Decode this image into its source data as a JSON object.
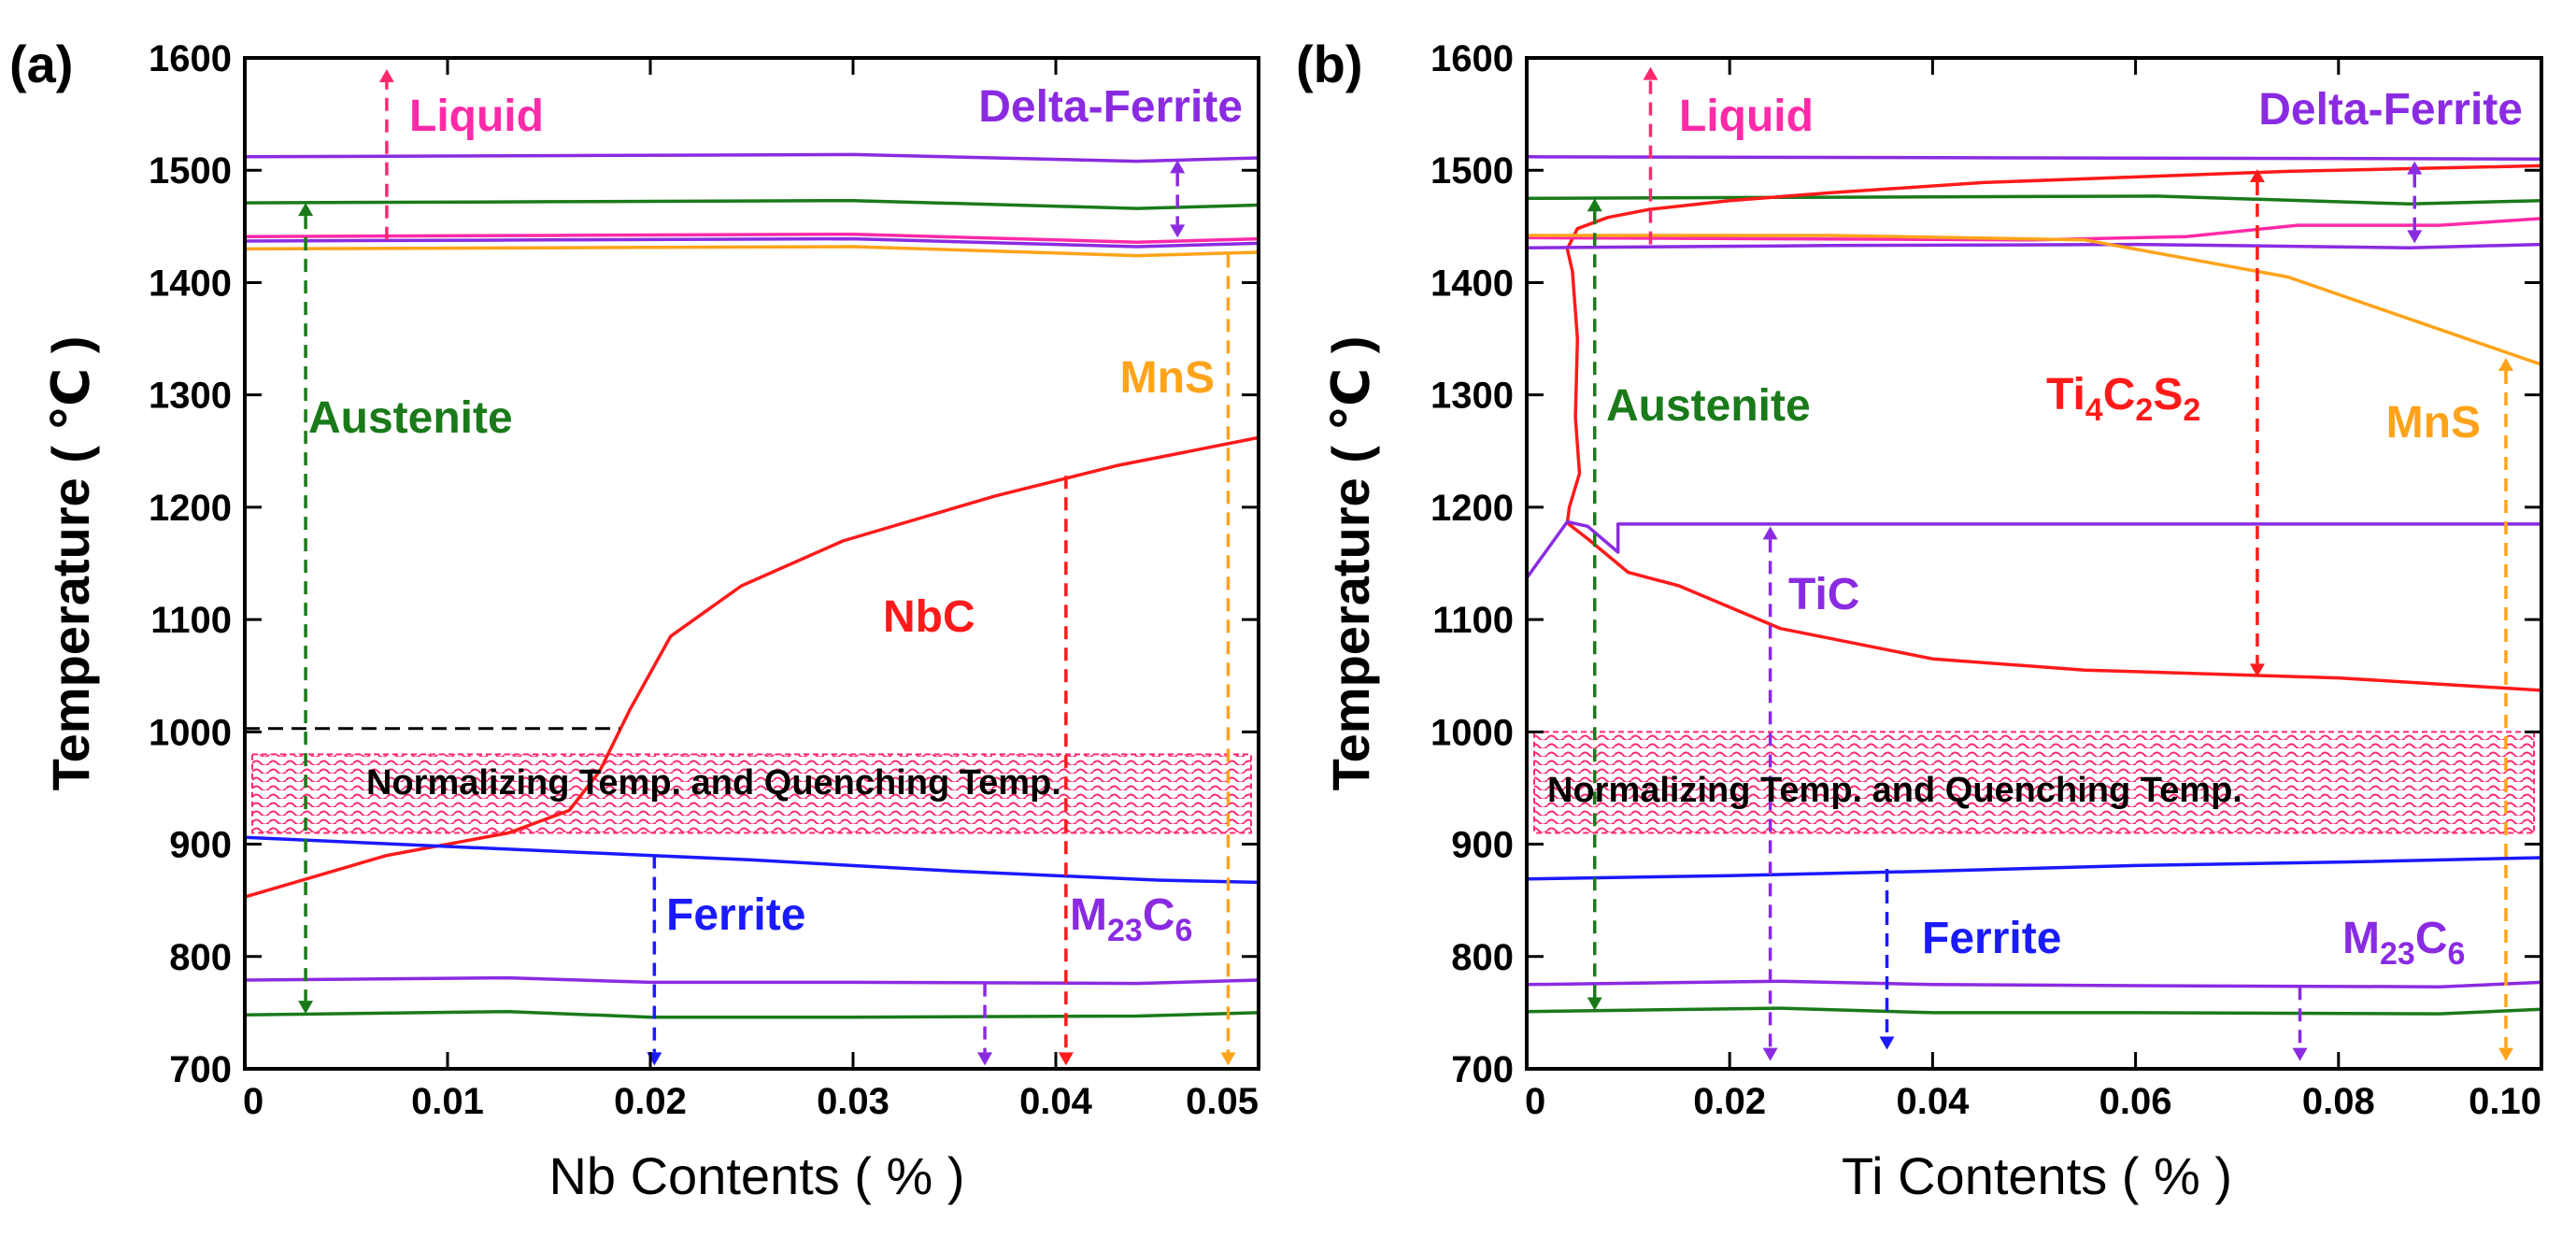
{
  "chart_data": [
    {
      "type": "line",
      "panel_label": "(a)",
      "xlabel": "Nb Contents ( % )",
      "ylabel": "Temperature ( ℃ )",
      "xlim": [
        0,
        0.05
      ],
      "ylim": [
        700,
        1600
      ],
      "xticks": [
        "0",
        "0.01",
        "0.02",
        "0.03",
        "0.04",
        "0.05"
      ],
      "yticks": [
        "700",
        "800",
        "900",
        "1000",
        "1100",
        "1200",
        "1300",
        "1400",
        "1500",
        "1600"
      ],
      "series": [
        {
          "name": "Delta-Ferrite upper",
          "color": "#8a2be2",
          "x": [
            0,
            0.015,
            0.03,
            0.044,
            0.05
          ],
          "y": [
            1512,
            1513,
            1514,
            1508,
            1511
          ]
        },
        {
          "name": "Austenite upper",
          "color": "#1a7a1a",
          "x": [
            0,
            0.015,
            0.03,
            0.044,
            0.05
          ],
          "y": [
            1471,
            1472,
            1473,
            1466,
            1469
          ]
        },
        {
          "name": "Liquid (magenta)",
          "color": "#ff2aa8",
          "x": [
            0,
            0.015,
            0.03,
            0.044,
            0.05
          ],
          "y": [
            1441,
            1442,
            1443,
            1436,
            1439
          ]
        },
        {
          "name": "Liquid (purple)",
          "color": "#8a2be2",
          "x": [
            0,
            0.015,
            0.03,
            0.044,
            0.05
          ],
          "y": [
            1437,
            1438,
            1439,
            1432,
            1435
          ]
        },
        {
          "name": "MnS",
          "color": "#ffa31a",
          "x": [
            0,
            0.015,
            0.03,
            0.044,
            0.05
          ],
          "y": [
            1430,
            1431,
            1432,
            1424,
            1427
          ]
        },
        {
          "name": "NbC",
          "color": "#ff1a1a",
          "x": [
            0,
            0.007,
            0.013,
            0.016,
            0.0175,
            0.019,
            0.021,
            0.0245,
            0.0295,
            0.037,
            0.043,
            0.05
          ],
          "y": [
            853,
            890,
            910,
            930,
            965,
            1020,
            1085,
            1130,
            1170,
            1210,
            1237,
            1262
          ]
        },
        {
          "name": "Ferrite",
          "color": "#1a1aff",
          "x": [
            0,
            0.01,
            0.02,
            0.025,
            0.035,
            0.045,
            0.05
          ],
          "y": [
            906,
            898,
            890,
            886,
            876,
            868,
            866
          ]
        },
        {
          "name": "M23C6",
          "color": "#8a2be2",
          "x": [
            0,
            0.013,
            0.02,
            0.03,
            0.044,
            0.05
          ],
          "y": [
            779,
            781,
            777,
            777,
            776,
            779
          ]
        },
        {
          "name": "Austenite lower",
          "color": "#1a7a1a",
          "x": [
            0,
            0.013,
            0.02,
            0.03,
            0.044,
            0.05
          ],
          "y": [
            748,
            751,
            746,
            746,
            747,
            750
          ]
        }
      ],
      "reference_lines": [
        {
          "name": "NbC 1000 guide",
          "color": "#000000",
          "x": [
            0,
            0.0185
          ],
          "y": [
            1003,
            1003
          ]
        }
      ],
      "band": {
        "label": "Normalizing Temp. and Quenching Temp.",
        "y_range": [
          910,
          980
        ],
        "color": "#ff2a6e"
      },
      "arrows": [
        {
          "name": "liquid",
          "color": "#ff2a6e",
          "x": 0.007,
          "y": [
            1438,
            1590
          ],
          "heads": "end"
        },
        {
          "name": "austenite",
          "color": "#1a7a1a",
          "x": 0.003,
          "y": [
            1471,
            749
          ],
          "heads": "both"
        },
        {
          "name": "delta",
          "color": "#8a2be2",
          "x": 0.046,
          "y": [
            1509,
            1440
          ],
          "heads": "both"
        },
        {
          "name": "mns",
          "color": "#ffa31a",
          "x": 0.0485,
          "y": [
            1425,
            703
          ],
          "heads": "end"
        },
        {
          "name": "nbc",
          "color": "#ff1a1a",
          "x": 0.0405,
          "y": [
            1228,
            703
          ],
          "heads": "end"
        },
        {
          "name": "ferrite",
          "color": "#1a1aff",
          "x": 0.0202,
          "y": [
            890,
            703
          ],
          "heads": "end"
        },
        {
          "name": "m23c6",
          "color": "#8a2be2",
          "x": 0.0365,
          "y": [
            776,
            703
          ],
          "heads": "end"
        }
      ],
      "labels": {
        "liquid": "Liquid",
        "delta_ferrite": "Delta-Ferrite",
        "austenite": "Austenite",
        "mns": "MnS",
        "nbc": "NbC",
        "ferrite": "Ferrite",
        "m23c6_base": "M",
        "m23c6_sub1": "23",
        "m23c6_mid": "C",
        "m23c6_sub2": "6"
      }
    },
    {
      "type": "line",
      "panel_label": "(b)",
      "xlabel": "Ti Contents ( % )",
      "ylabel": "Temperature ( ℃ )",
      "xlim": [
        0,
        0.1
      ],
      "ylim": [
        700,
        1600
      ],
      "xticks": [
        "0",
        "0.02",
        "0.04",
        "0.06",
        "0.08",
        "0.10"
      ],
      "yticks": [
        "700",
        "800",
        "900",
        "1000",
        "1100",
        "1200",
        "1300",
        "1400",
        "1500",
        "1600"
      ],
      "series": [
        {
          "name": "Delta-Ferrite upper",
          "color": "#8a2be2",
          "x": [
            0,
            0.05,
            0.1
          ],
          "y": [
            1512,
            1511,
            1510
          ]
        },
        {
          "name": "Austenite upper",
          "color": "#1a7a1a",
          "x": [
            0,
            0.03,
            0.062,
            0.087,
            0.1
          ],
          "y": [
            1475,
            1476,
            1477,
            1470,
            1473
          ]
        },
        {
          "name": "Ti4C2S2",
          "color": "#ff1a1a",
          "x": [
            0.004,
            0.005,
            0.008,
            0.012,
            0.02,
            0.03,
            0.045,
            0.06,
            0.075,
            0.09,
            0.1
          ],
          "y": [
            1430,
            1448,
            1458,
            1465,
            1473,
            1480,
            1489,
            1494,
            1499,
            1502,
            1504
          ]
        },
        {
          "name": "Liquid (magenta)",
          "color": "#ff2aa8",
          "x": [
            0,
            0.05,
            0.065,
            0.076,
            0.09,
            0.1
          ],
          "y": [
            1440,
            1438,
            1441,
            1451,
            1451,
            1457
          ]
        },
        {
          "name": "Liquid (purple)",
          "color": "#8a2be2",
          "x": [
            0,
            0.03,
            0.06,
            0.087,
            0.1
          ],
          "y": [
            1431,
            1433,
            1434,
            1431,
            1434
          ]
        },
        {
          "name": "MnS",
          "color": "#ffa31a",
          "x": [
            0,
            0.03,
            0.055,
            0.075,
            0.1
          ],
          "y": [
            1442,
            1442,
            1438,
            1405,
            1327
          ]
        },
        {
          "name": "TiC",
          "color": "#ff1a1a",
          "x": [
            0.004,
            0.0045,
            0.005,
            0.0048,
            0.0052,
            0.0042,
            0.004,
            0.006,
            0.01,
            0.015,
            0.025,
            0.04,
            0.055,
            0.08,
            0.1
          ],
          "y": [
            1430,
            1410,
            1350,
            1280,
            1230,
            1200,
            1186,
            1172,
            1142,
            1130,
            1092,
            1065,
            1055,
            1048,
            1037
          ]
        },
        {
          "name": "TiC boundary",
          "color": "#8a2be2",
          "x": [
            0,
            0.004,
            0.006,
            0.009,
            0.009,
            0.03,
            0.06,
            0.1
          ],
          "y": [
            1137,
            1187,
            1183,
            1160,
            1185,
            1185,
            1185,
            1185
          ]
        },
        {
          "name": "Ferrite",
          "color": "#1a1aff",
          "x": [
            0,
            0.02,
            0.04,
            0.06,
            0.08,
            0.1
          ],
          "y": [
            869,
            872,
            876,
            881,
            884,
            888
          ]
        },
        {
          "name": "M23C6",
          "color": "#8a2be2",
          "x": [
            0,
            0.025,
            0.04,
            0.06,
            0.09,
            0.1
          ],
          "y": [
            775,
            778,
            775,
            774,
            773,
            777
          ]
        },
        {
          "name": "Austenite lower",
          "color": "#1a7a1a",
          "x": [
            0,
            0.025,
            0.04,
            0.06,
            0.09,
            0.1
          ],
          "y": [
            751,
            754,
            750,
            750,
            749,
            753
          ]
        }
      ],
      "band": {
        "label": "Normalizing Temp. and Quenching Temp.",
        "y_range": [
          910,
          1000
        ],
        "color": "#ff2a6e"
      },
      "arrows": [
        {
          "name": "liquid",
          "color": "#ff2a6e",
          "x": 0.0122,
          "y": [
            1434,
            1592
          ],
          "heads": "end"
        },
        {
          "name": "austenite",
          "color": "#1a7a1a",
          "x": 0.0067,
          "y": [
            1475,
            752
          ],
          "heads": "both"
        },
        {
          "name": "delta",
          "color": "#8a2be2",
          "x": 0.0875,
          "y": [
            1508,
            1435
          ],
          "heads": "both"
        },
        {
          "name": "ti4c2s2",
          "color": "#ff1a1a",
          "x": 0.072,
          "y": [
            1501,
            1049
          ],
          "heads": "both"
        },
        {
          "name": "mns",
          "color": "#ffa31a",
          "x": 0.0965,
          "y": [
            1333,
            707
          ],
          "heads": "both"
        },
        {
          "name": "tic",
          "color": "#8a2be2",
          "x": 0.024,
          "y": [
            1183,
            707
          ],
          "heads": "both"
        },
        {
          "name": "ferrite",
          "color": "#1a1aff",
          "x": 0.0355,
          "y": [
            878,
            717
          ],
          "heads": "end"
        },
        {
          "name": "m23c6",
          "color": "#8a2be2",
          "x": 0.0762,
          "y": [
            773,
            707
          ],
          "heads": "end"
        }
      ],
      "labels": {
        "liquid": "Liquid",
        "delta_ferrite": "Delta-Ferrite",
        "austenite": "Austenite",
        "tic": "TiC",
        "mns": "MnS",
        "ferrite": "Ferrite",
        "m23c6_base": "M",
        "m23c6_sub1": "23",
        "m23c6_mid": "C",
        "m23c6_sub2": "6",
        "ti_base": "Ti",
        "ti_sub1": "4",
        "ti_c": "C",
        "ti_sub2": "2",
        "ti_s": "S",
        "ti_sub3": "2"
      }
    }
  ]
}
